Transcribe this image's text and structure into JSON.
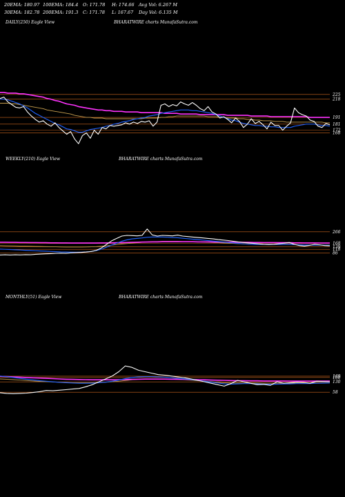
{
  "header": {
    "row1": [
      "20EMA: 180.97",
      "100EMA: 184.4",
      "O: 171.78",
      "H: 174.66",
      "Avg Vol: 6.267 M"
    ],
    "row2": [
      "30EMA: 182.78",
      "200EMA: 191.3",
      "C: 171.78",
      "L: 167.67",
      "Day Vol: 6.135 M"
    ]
  },
  "colors": {
    "background": "#000000",
    "price": "#ffffff",
    "ema_short": "#1f5ff5",
    "ema_200": "#ff33ff",
    "ema_mid": "#c8a050",
    "level_line": "#d2691e"
  },
  "panels": [
    {
      "name": "daily",
      "title_left": "DAILY(250) Eagle  View",
      "title_center": "BHARATWIRE charts MunafaSutra.com"
    },
    {
      "name": "weekly",
      "title_left": "WEEKLY(210) Eagle  View",
      "title_center": "BHARATWIRE charts MunafaSutra.com"
    },
    {
      "name": "monthly",
      "title_left": "MONTHLY(51) Eagle  View",
      "title_center": "BHARATWIRE charts MunafaSutra.com"
    }
  ],
  "chart_data": [
    {
      "type": "line",
      "panel": "daily",
      "levels": [
        "225",
        "218",
        "191",
        "181",
        "172",
        "168"
      ],
      "series": [
        {
          "role": "price",
          "values": [
            219,
            221,
            214,
            210,
            206,
            205,
            207,
            199,
            193,
            188,
            184,
            186,
            181,
            178,
            183,
            176,
            171,
            166,
            170,
            159,
            152,
            164,
            168,
            160,
            172,
            166,
            176,
            174,
            179,
            178,
            179,
            180,
            183,
            181,
            184,
            182,
            185,
            184,
            186,
            178,
            184,
            209,
            211,
            207,
            210,
            208,
            214,
            211,
            209,
            213,
            209,
            204,
            201,
            207,
            199,
            196,
            190,
            192,
            188,
            183,
            190,
            185,
            176,
            181,
            189,
            182,
            185,
            180,
            174,
            184,
            179,
            179,
            172,
            178,
            183,
            205,
            198,
            195,
            193,
            187,
            185,
            178,
            176,
            182,
            180
          ]
        },
        {
          "role": "ema_short",
          "values": [
            218,
            218,
            217,
            215,
            213,
            211,
            208,
            205,
            201,
            197,
            194,
            191,
            188,
            185,
            182,
            180,
            177,
            174,
            173,
            171,
            169,
            169,
            171,
            173,
            174,
            175,
            176,
            178,
            179,
            181,
            182,
            184,
            185,
            186,
            188,
            189,
            190,
            191,
            193,
            194,
            195,
            197,
            198,
            199,
            200,
            201,
            202,
            202,
            202,
            201,
            201,
            200,
            199,
            198,
            197,
            195,
            193,
            191,
            189,
            187,
            186,
            184,
            182,
            181,
            180,
            179,
            179,
            178,
            178,
            177,
            177,
            176,
            176,
            176,
            176,
            178,
            179,
            180,
            181,
            181,
            181,
            180,
            179,
            179,
            178
          ]
        },
        {
          "role": "ema_mid",
          "values": [
            212,
            212,
            212,
            211,
            211,
            210,
            209,
            208,
            207,
            206,
            205,
            204,
            202,
            201,
            200,
            199,
            198,
            197,
            196,
            194,
            193,
            192,
            191,
            191,
            190,
            190,
            190,
            189,
            189,
            189,
            189,
            189,
            189,
            189,
            189,
            189,
            189,
            190,
            190,
            190,
            190,
            191,
            191,
            192,
            192,
            193,
            193,
            193,
            193,
            193,
            193,
            193,
            193,
            192,
            192,
            192,
            191,
            191,
            190,
            190,
            190,
            189,
            189,
            188,
            188,
            187,
            187,
            186,
            186,
            186,
            185,
            185,
            185,
            184,
            184,
            184,
            184,
            184,
            184,
            184,
            184,
            184,
            184,
            183,
            183
          ]
        },
        {
          "role": "ema_200",
          "values": [
            228,
            228,
            227,
            227,
            227,
            226,
            226,
            225,
            224,
            223,
            222,
            221,
            219,
            218,
            216,
            215,
            213,
            211,
            210,
            209,
            207,
            206,
            205,
            204,
            203,
            202,
            202,
            201,
            201,
            200,
            200,
            200,
            199,
            199,
            199,
            199,
            198,
            198,
            198,
            198,
            198,
            198,
            197,
            197,
            197,
            197,
            196,
            196,
            196,
            196,
            196,
            195,
            195,
            195,
            195,
            195,
            195,
            195,
            194,
            194,
            194,
            194,
            194,
            194,
            193,
            193,
            193,
            193,
            193,
            192,
            192,
            192,
            192,
            192,
            192,
            192,
            192,
            192,
            192,
            191,
            191,
            191,
            191,
            191,
            191
          ]
        }
      ]
    },
    {
      "type": "line",
      "panel": "weekly",
      "levels": [
        "266",
        "168",
        "139",
        "118",
        "86"
      ],
      "series": [
        {
          "role": "price",
          "values": [
            70,
            72,
            70,
            72,
            71,
            73,
            72,
            76,
            78,
            80,
            82,
            84,
            86,
            85,
            88,
            90,
            92,
            95,
            100,
            110,
            130,
            160,
            190,
            210,
            230,
            236,
            234,
            232,
            236,
            290,
            240,
            230,
            236,
            234,
            232,
            238,
            230,
            226,
            222,
            218,
            214,
            210,
            206,
            200,
            196,
            192,
            186,
            180,
            176,
            172,
            168,
            164,
            160,
            158,
            160,
            166,
            170,
            176,
            160,
            150,
            146,
            152,
            160,
            156,
            150,
            148
          ]
        },
        {
          "role": "ema_short",
          "values": [
            120,
            118,
            116,
            114,
            112,
            110,
            108,
            106,
            104,
            102,
            100,
            98,
            96,
            95,
            94,
            93,
            94,
            96,
            100,
            108,
            120,
            136,
            154,
            170,
            186,
            198,
            206,
            210,
            214,
            220,
            222,
            222,
            222,
            220,
            218,
            216,
            212,
            208,
            204,
            200,
            196,
            192,
            188,
            184,
            180,
            176,
            172,
            168,
            164,
            162,
            160,
            160,
            160,
            160,
            160,
            160,
            160,
            160,
            158,
            156,
            154,
            154,
            154,
            154,
            153,
            152
          ]
        },
        {
          "role": "ema_mid",
          "values": [
            150,
            149,
            148,
            147,
            146,
            145,
            144,
            143,
            142,
            141,
            140,
            139,
            138,
            137,
            137,
            137,
            137,
            138,
            139,
            141,
            144,
            148,
            153,
            158,
            163,
            167,
            171,
            174,
            177,
            181,
            183,
            184,
            185,
            185,
            185,
            185,
            184,
            183,
            182,
            181,
            179,
            178,
            176,
            174,
            172,
            170,
            168,
            166,
            164,
            162,
            161,
            160,
            159,
            158,
            158,
            158,
            158,
            158,
            157,
            156,
            155,
            155,
            155,
            155,
            154,
            154
          ]
        },
        {
          "role": "ema_200",
          "values": [
            178,
            178,
            177,
            177,
            176,
            176,
            175,
            175,
            174,
            174,
            173,
            173,
            172,
            172,
            171,
            171,
            171,
            171,
            171,
            171,
            172,
            172,
            173,
            174,
            175,
            176,
            177,
            178,
            179,
            180,
            181,
            181,
            182,
            182,
            182,
            182,
            182,
            182,
            182,
            181,
            181,
            181,
            180,
            180,
            179,
            179,
            178,
            178,
            177,
            177,
            176,
            176,
            175,
            175,
            175,
            174,
            174,
            174,
            173,
            173,
            172,
            172,
            172,
            171,
            171,
            171
          ]
        }
      ]
    },
    {
      "type": "line",
      "panel": "monthly",
      "levels": [
        "169",
        "160",
        "130",
        "58"
      ],
      "series": [
        {
          "role": "price",
          "values": [
            55,
            50,
            48,
            50,
            52,
            56,
            62,
            70,
            68,
            72,
            76,
            80,
            84,
            96,
            110,
            130,
            150,
            170,
            200,
            240,
            230,
            210,
            200,
            190,
            180,
            176,
            170,
            164,
            158,
            150,
            140,
            130,
            120,
            110,
            100,
            118,
            140,
            130,
            120,
            110,
            112,
            106,
            130,
            120,
            124,
            128,
            126,
            120,
            134,
            132,
            130
          ]
        },
        {
          "role": "ema_short",
          "values": [
            170,
            166,
            160,
            154,
            148,
            143,
            138,
            134,
            130,
            127,
            124,
            122,
            120,
            120,
            121,
            124,
            128,
            134,
            142,
            152,
            160,
            164,
            166,
            166,
            164,
            162,
            158,
            154,
            150,
            146,
            140,
            134,
            128,
            122,
            116,
            114,
            116,
            118,
            118,
            116,
            114,
            112,
            114,
            115,
            116,
            118,
            118,
            118,
            120,
            121,
            122
          ]
        },
        {
          "role": "ema_mid",
          "values": [
            150,
            148,
            145,
            142,
            139,
            136,
            133,
            131,
            129,
            127,
            125,
            124,
            123,
            123,
            124,
            125,
            127,
            130,
            134,
            139,
            144,
            147,
            149,
            150,
            150,
            149,
            148,
            146,
            144,
            141,
            138,
            135,
            131,
            127,
            124,
            122,
            122,
            122,
            122,
            121,
            120,
            120,
            120,
            120,
            121,
            121,
            122,
            122,
            123,
            123,
            124
          ]
        },
        {
          "role": "ema_200",
          "values": [
            168,
            166,
            164,
            162,
            160,
            158,
            156,
            154,
            152,
            150,
            148,
            147,
            146,
            145,
            144,
            144,
            144,
            144,
            145,
            146,
            147,
            148,
            149,
            149,
            149,
            149,
            148,
            148,
            147,
            146,
            145,
            144,
            142,
            141,
            140,
            139,
            138,
            138,
            137,
            137,
            136,
            136,
            136,
            136,
            135,
            135,
            135,
            135,
            135,
            135,
            135
          ]
        }
      ]
    }
  ]
}
